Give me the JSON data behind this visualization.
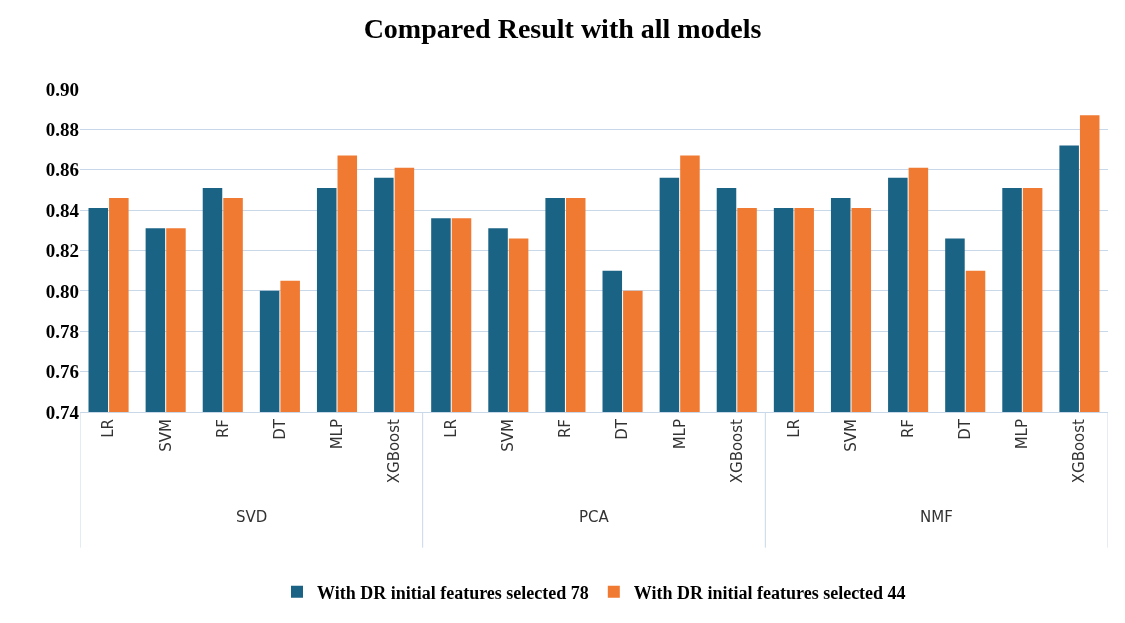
{
  "chart_data": {
    "type": "bar",
    "title": "Compared Result with all models",
    "categories": [
      "LR",
      "SVM",
      "RF",
      "DT",
      "MLP",
      "XGBoost",
      "LR",
      "SVM",
      "RF",
      "DT",
      "MLP",
      "XGBoost",
      "LR",
      "SVM",
      "RF",
      "DT",
      "MLP",
      "XGBoost"
    ],
    "series": [
      {
        "name": "With DR initial features selected 78",
        "color": "#1b6384",
        "values": [
          0.841,
          0.831,
          0.851,
          0.8,
          0.851,
          0.856,
          0.836,
          0.831,
          0.846,
          0.81,
          0.856,
          0.851,
          0.841,
          0.846,
          0.856,
          0.826,
          0.851,
          0.872
        ]
      },
      {
        "name": "With DR initial features selected 44",
        "color": "#f07a32",
        "values": [
          0.846,
          0.831,
          0.846,
          0.805,
          0.867,
          0.861,
          0.836,
          0.826,
          0.846,
          0.8,
          0.867,
          0.841,
          0.841,
          0.841,
          0.861,
          0.81,
          0.851,
          0.887
        ]
      }
    ],
    "annotations": [
      "SVD",
      "PCA",
      "NMF"
    ],
    "ylim": [
      0.74,
      0.9
    ],
    "yticks": [
      {
        "value": 0.74,
        "label": "0.74"
      },
      {
        "value": 0.76,
        "label": "0.76"
      },
      {
        "value": 0.78,
        "label": "0.78"
      },
      {
        "value": 0.8,
        "label": "0.80"
      },
      {
        "value": 0.82,
        "label": "0.82"
      },
      {
        "value": 0.84,
        "label": "0.84"
      },
      {
        "value": 0.86,
        "label": "0.86"
      },
      {
        "value": 0.88,
        "label": "0.88"
      },
      {
        "value": 0.9,
        "label": "0.90"
      }
    ],
    "grid": "y",
    "legend": "bottom"
  }
}
